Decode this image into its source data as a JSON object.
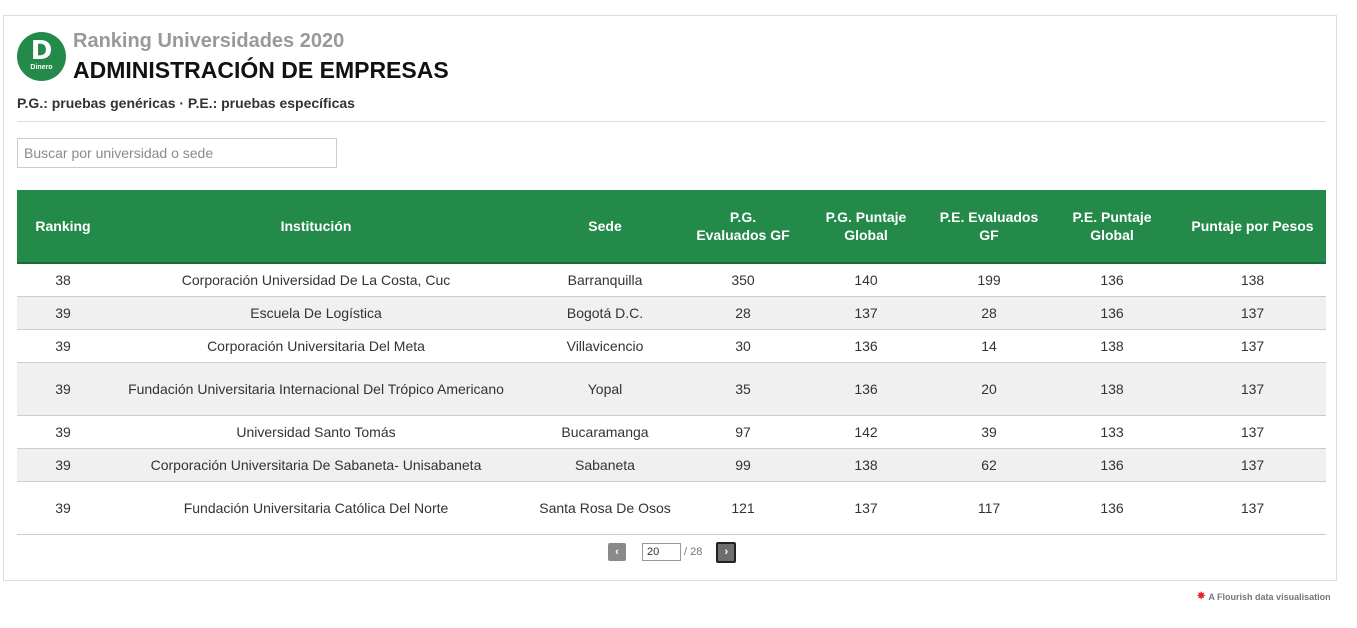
{
  "header": {
    "logo_letter": "D",
    "logo_sub": "Dinero",
    "supertitle": "Ranking Universidades 2020",
    "title": "ADMINISTRACIÓN DE EMPRESAS",
    "subtitle": "P.G.: pruebas genéricas · P.E.: pruebas específicas"
  },
  "search": {
    "placeholder": "Buscar por universidad o sede",
    "value": ""
  },
  "table": {
    "columns": [
      "Ranking",
      "Institución",
      "Sede",
      "P.G. Evaluados GF",
      "P.G. Puntaje Global",
      "P.E. Evaluados GF",
      "P.E. Puntaje Global",
      "Puntaje por Pesos"
    ],
    "rows": [
      [
        "38",
        "Corporación Universidad De La Costa, Cuc",
        "Barranquilla",
        "350",
        "140",
        "199",
        "136",
        "138"
      ],
      [
        "39",
        "Escuela De Logística",
        "Bogotá D.C.",
        "28",
        "137",
        "28",
        "136",
        "137"
      ],
      [
        "39",
        "Corporación Universitaria Del Meta",
        "Villavicencio",
        "30",
        "136",
        "14",
        "138",
        "137"
      ],
      [
        "39",
        "Fundación Universitaria Internacional Del Trópico Americano",
        "Yopal",
        "35",
        "136",
        "20",
        "138",
        "137"
      ],
      [
        "39",
        "Universidad Santo Tomás",
        "Bucaramanga",
        "97",
        "142",
        "39",
        "133",
        "137"
      ],
      [
        "39",
        "Corporación Universitaria De Sabaneta- Unisabaneta",
        "Sabaneta",
        "99",
        "138",
        "62",
        "136",
        "137"
      ],
      [
        "39",
        "Fundación Universitaria Católica Del Norte",
        "Santa Rosa De Osos",
        "121",
        "137",
        "117",
        "136",
        "137"
      ]
    ]
  },
  "pager": {
    "prev": "‹",
    "next": "›",
    "page": "20",
    "total": "/ 28"
  },
  "footer": {
    "credit": "A Flourish data visualisation"
  },
  "colors": {
    "brand_green": "#238a4a",
    "row_alt": "#f0f0f0"
  }
}
